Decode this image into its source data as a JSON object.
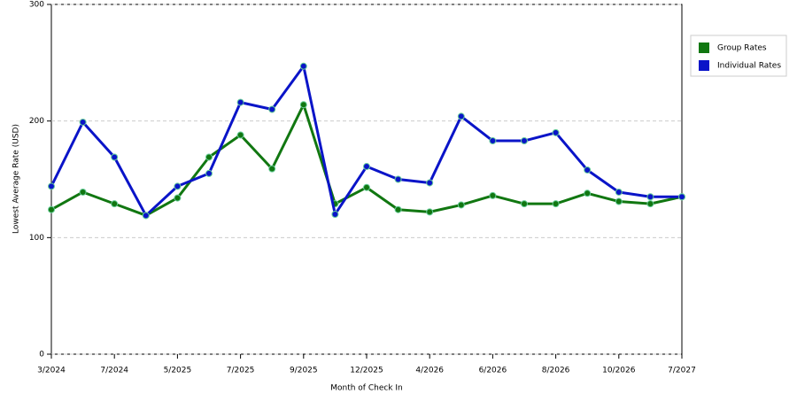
{
  "chart_data": {
    "type": "line",
    "x_label": "Month of Check In",
    "y_label": "Lowest Average Rate (USD)",
    "categories": [
      "3/2024",
      null,
      "7/2024",
      null,
      "5/2025",
      null,
      "7/2025",
      null,
      "9/2025",
      null,
      "12/2025",
      null,
      "4/2026",
      null,
      "6/2026",
      null,
      "8/2026",
      null,
      "10/2026",
      null,
      "7/2027"
    ],
    "series": [
      {
        "name": "Group Rates",
        "color": "#117711",
        "values": [
          124,
          139,
          129,
          119,
          134,
          169,
          188,
          159,
          214,
          129,
          143,
          124,
          122,
          128,
          136,
          129,
          129,
          138,
          131,
          129,
          135
        ]
      },
      {
        "name": "Individual Rates",
        "color": "#0a14c8",
        "values": [
          144,
          199,
          169,
          119,
          144,
          155,
          216,
          210,
          247,
          120,
          161,
          150,
          147,
          204,
          183,
          183,
          190,
          158,
          139,
          135,
          135
        ]
      }
    ],
    "ylim": [
      0,
      300
    ],
    "yticks": [
      0,
      100,
      200,
      300
    ],
    "grid": true,
    "legend": "right"
  }
}
